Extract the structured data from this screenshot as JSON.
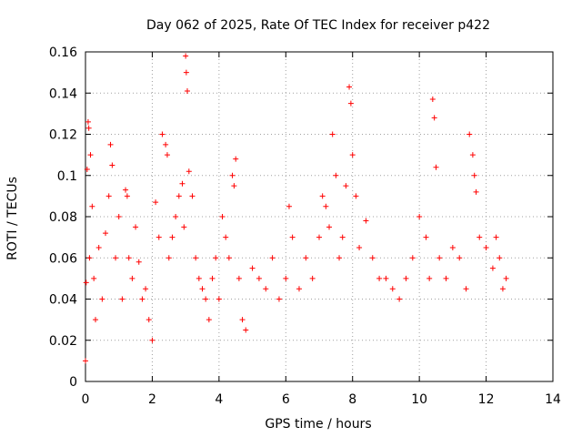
{
  "chart_data": {
    "type": "scatter",
    "title": "Day 062 of 2025, Rate Of TEC Index for receiver p422",
    "xlabel": "GPS time / hours",
    "ylabel": "ROTI / TECUs",
    "xlim": [
      0,
      14
    ],
    "ylim": [
      0,
      0.16
    ],
    "x_ticks": [
      0,
      2,
      4,
      6,
      8,
      10,
      12,
      14
    ],
    "x_tick_labels": [
      "0",
      "2",
      "4",
      "6",
      "8",
      "10",
      "12",
      "14"
    ],
    "y_ticks": [
      0,
      0.02,
      0.04,
      0.06,
      0.08,
      0.1,
      0.12,
      0.14,
      0.16
    ],
    "y_tick_labels": [
      "0",
      "0.02",
      "0.04",
      "0.06",
      "0.08",
      "0.1",
      "0.12",
      "0.14",
      "0.16"
    ],
    "grid": true,
    "marker": "+",
    "color": "#ff0000",
    "series": [
      {
        "name": "ROTI",
        "x": [
          0.0,
          0.02,
          0.05,
          0.08,
          0.1,
          0.12,
          0.15,
          0.2,
          0.25,
          0.3,
          0.4,
          0.5,
          0.6,
          0.7,
          0.75,
          0.8,
          0.9,
          1.0,
          1.1,
          1.2,
          1.25,
          1.3,
          1.4,
          1.5,
          1.6,
          1.7,
          1.8,
          1.9,
          2.0,
          2.1,
          2.2,
          2.3,
          2.4,
          2.45,
          2.5,
          2.6,
          2.7,
          2.8,
          2.9,
          2.95,
          3.0,
          3.02,
          3.05,
          3.1,
          3.2,
          3.3,
          3.4,
          3.5,
          3.6,
          3.7,
          3.8,
          3.9,
          4.0,
          4.1,
          4.2,
          4.3,
          4.4,
          4.45,
          4.5,
          4.6,
          4.7,
          4.8,
          5.0,
          5.2,
          5.4,
          5.6,
          5.8,
          6.0,
          6.1,
          6.2,
          6.4,
          6.6,
          6.8,
          7.0,
          7.1,
          7.2,
          7.3,
          7.4,
          7.5,
          7.6,
          7.7,
          7.8,
          7.9,
          7.95,
          8.0,
          8.1,
          8.2,
          8.4,
          8.6,
          8.8,
          9.0,
          9.2,
          9.4,
          9.6,
          9.8,
          10.0,
          10.2,
          10.3,
          10.4,
          10.45,
          10.5,
          10.6,
          10.8,
          11.0,
          11.2,
          11.4,
          11.5,
          11.6,
          11.65,
          11.7,
          11.8,
          12.0,
          12.2,
          12.3,
          12.4,
          12.5,
          12.6
        ],
        "y": [
          0.01,
          0.048,
          0.103,
          0.126,
          0.123,
          0.06,
          0.11,
          0.085,
          0.05,
          0.03,
          0.065,
          0.04,
          0.072,
          0.09,
          0.115,
          0.105,
          0.06,
          0.08,
          0.04,
          0.093,
          0.09,
          0.06,
          0.05,
          0.075,
          0.058,
          0.04,
          0.045,
          0.03,
          0.02,
          0.087,
          0.07,
          0.12,
          0.115,
          0.11,
          0.06,
          0.07,
          0.08,
          0.09,
          0.096,
          0.075,
          0.158,
          0.15,
          0.141,
          0.102,
          0.09,
          0.06,
          0.05,
          0.045,
          0.04,
          0.03,
          0.05,
          0.06,
          0.04,
          0.08,
          0.07,
          0.06,
          0.1,
          0.095,
          0.108,
          0.05,
          0.03,
          0.025,
          0.055,
          0.05,
          0.045,
          0.06,
          0.04,
          0.05,
          0.085,
          0.07,
          0.045,
          0.06,
          0.05,
          0.07,
          0.09,
          0.085,
          0.075,
          0.12,
          0.1,
          0.06,
          0.07,
          0.095,
          0.143,
          0.135,
          0.11,
          0.09,
          0.065,
          0.078,
          0.06,
          0.05,
          0.05,
          0.045,
          0.04,
          0.05,
          0.06,
          0.08,
          0.07,
          0.05,
          0.137,
          0.128,
          0.104,
          0.06,
          0.05,
          0.065,
          0.06,
          0.045,
          0.12,
          0.11,
          0.1,
          0.092,
          0.07,
          0.065,
          0.055,
          0.07,
          0.06,
          0.045,
          0.05
        ]
      }
    ]
  }
}
